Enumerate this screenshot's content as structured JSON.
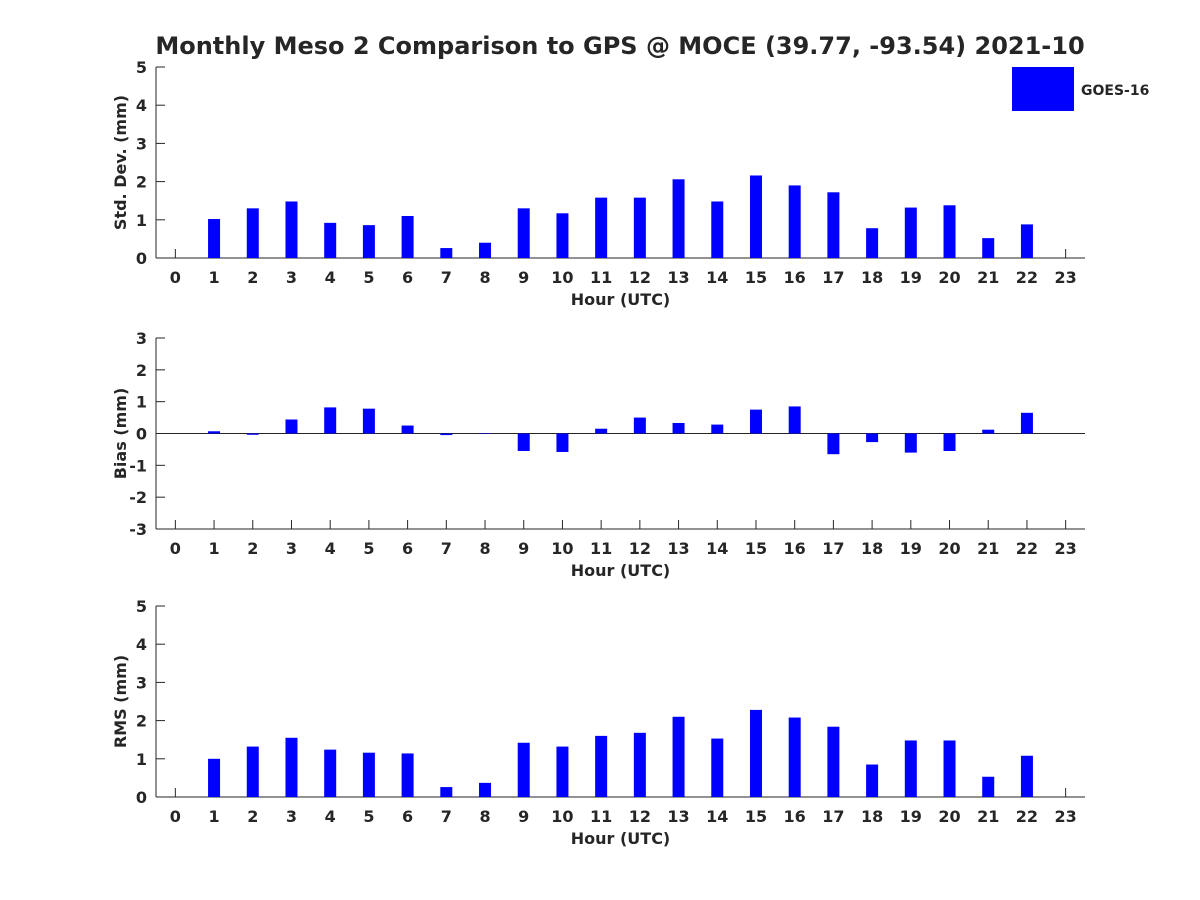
{
  "colors": {
    "bar": "#0000ff",
    "axis": "#262626",
    "background": "#ffffff"
  },
  "title": "Monthly Meso 2 Comparison to GPS @ MOCE (39.77, -93.54) 2021-10",
  "legend": {
    "label": "GOES-16",
    "placement": "top-right"
  },
  "chart_data": [
    {
      "type": "bar",
      "title": "Monthly Meso 2 Comparison to GPS @ MOCE (39.77, -93.54) 2021-10",
      "xlabel": "Hour (UTC)",
      "ylabel": "Std. Dev. (mm)",
      "categories": [
        "0",
        "1",
        "2",
        "3",
        "4",
        "5",
        "6",
        "7",
        "8",
        "9",
        "10",
        "11",
        "12",
        "13",
        "14",
        "15",
        "16",
        "17",
        "18",
        "19",
        "20",
        "21",
        "22",
        "23"
      ],
      "xlim": [
        -0.5,
        23.5
      ],
      "ylim": [
        0,
        5
      ],
      "yticks": [
        "0",
        "1",
        "2",
        "3",
        "4",
        "5"
      ],
      "series": [
        {
          "name": "GOES-16",
          "values": [
            null,
            1.02,
            1.3,
            1.48,
            0.92,
            0.86,
            1.1,
            0.26,
            0.4,
            1.3,
            1.17,
            1.58,
            1.58,
            2.06,
            1.48,
            2.16,
            1.9,
            1.72,
            0.78,
            1.32,
            1.38,
            0.52,
            0.88,
            null
          ]
        }
      ],
      "legend": true,
      "grid": false
    },
    {
      "type": "bar",
      "xlabel": "Hour (UTC)",
      "ylabel": "Bias (mm)",
      "categories": [
        "0",
        "1",
        "2",
        "3",
        "4",
        "5",
        "6",
        "7",
        "8",
        "9",
        "10",
        "11",
        "12",
        "13",
        "14",
        "15",
        "16",
        "17",
        "18",
        "19",
        "20",
        "21",
        "22",
        "23"
      ],
      "xlim": [
        -0.5,
        23.5
      ],
      "ylim": [
        -3,
        3
      ],
      "yticks": [
        "-3",
        "-2",
        "-1",
        "0",
        "1",
        "2",
        "3"
      ],
      "series": [
        {
          "name": "GOES-16",
          "values": [
            null,
            0.07,
            -0.04,
            0.44,
            0.82,
            0.78,
            0.25,
            -0.05,
            0.0,
            -0.55,
            -0.58,
            0.15,
            0.5,
            0.33,
            0.28,
            0.75,
            0.85,
            -0.65,
            -0.27,
            -0.6,
            -0.55,
            0.12,
            0.65,
            null
          ]
        }
      ],
      "legend": false,
      "grid": false
    },
    {
      "type": "bar",
      "xlabel": "Hour (UTC)",
      "ylabel": "RMS (mm)",
      "categories": [
        "0",
        "1",
        "2",
        "3",
        "4",
        "5",
        "6",
        "7",
        "8",
        "9",
        "10",
        "11",
        "12",
        "13",
        "14",
        "15",
        "16",
        "17",
        "18",
        "19",
        "20",
        "21",
        "22",
        "23"
      ],
      "xlim": [
        -0.5,
        23.5
      ],
      "ylim": [
        0,
        5
      ],
      "yticks": [
        "0",
        "1",
        "2",
        "3",
        "4",
        "5"
      ],
      "series": [
        {
          "name": "GOES-16",
          "values": [
            null,
            1.0,
            1.32,
            1.55,
            1.24,
            1.16,
            1.14,
            0.26,
            0.37,
            1.42,
            1.32,
            1.6,
            1.68,
            2.1,
            1.53,
            2.28,
            2.08,
            1.84,
            0.85,
            1.48,
            1.48,
            0.53,
            1.08,
            null
          ]
        }
      ],
      "legend": false,
      "grid": false
    }
  ]
}
